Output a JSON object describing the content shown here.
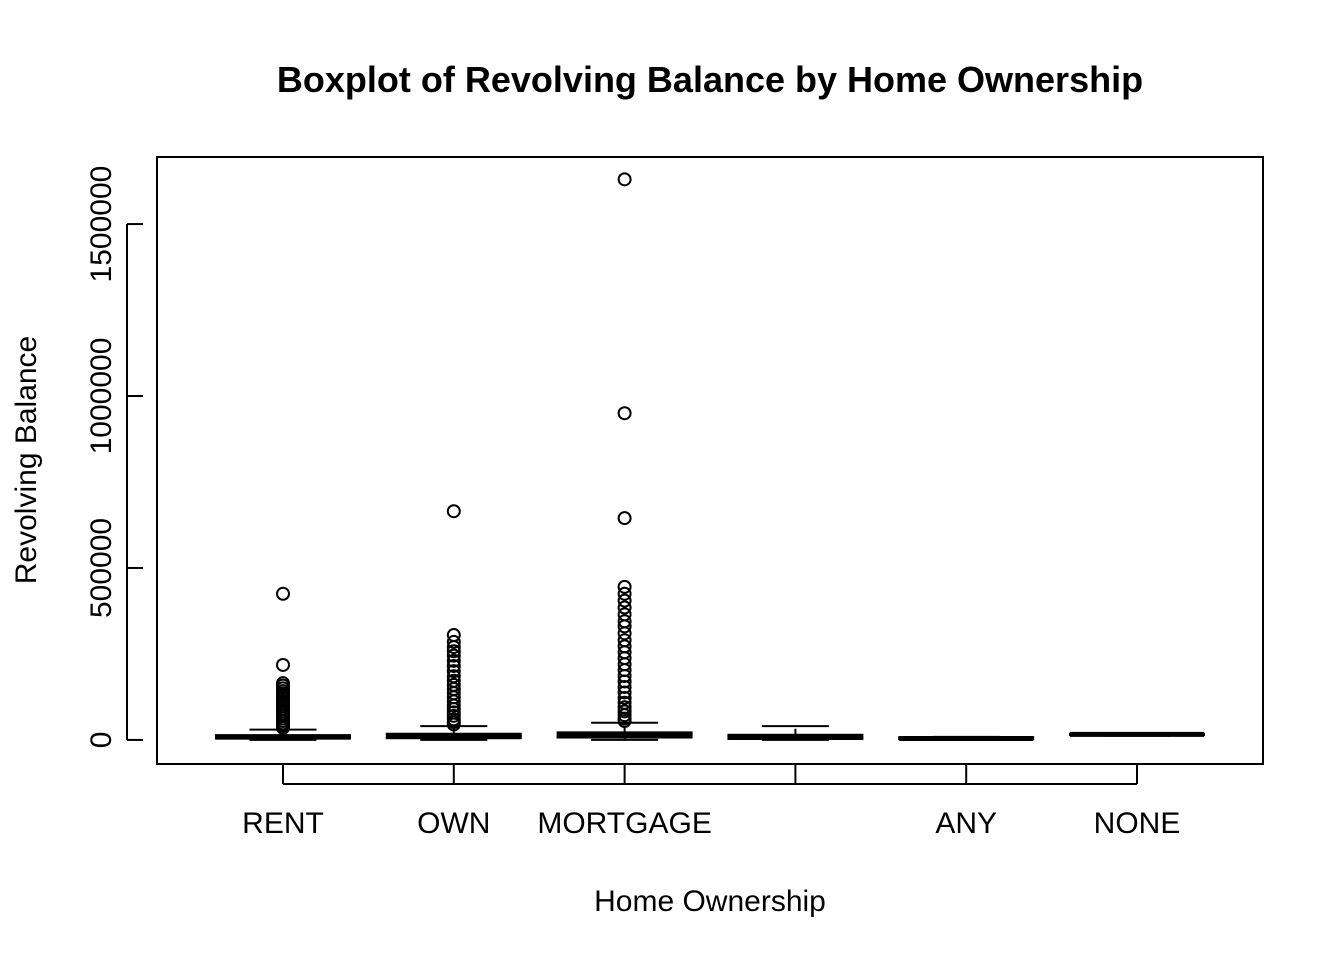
{
  "chart_data": {
    "type": "boxplot",
    "title": "Boxplot of Revolving Balance by Home Ownership",
    "xlabel": "Home Ownership",
    "ylabel": "Revolving Balance",
    "categories": [
      "RENT",
      "OWN",
      "MORTGAGE",
      "",
      "ANY",
      "NONE"
    ],
    "ylim": [
      -70000,
      1695000
    ],
    "yticks": [
      0,
      500000,
      1000000,
      1500000
    ],
    "ytick_labels": [
      "0",
      "500000",
      "1000000",
      "1500000"
    ],
    "grid": false,
    "boxes": [
      {
        "category": "RENT",
        "min": 0,
        "q1": 4000,
        "median": 8000,
        "q3": 14000,
        "max": 30000,
        "outliers": [
          425000,
          218000,
          165000,
          158000,
          150000,
          142000,
          135000,
          128000,
          120000,
          112000,
          105000,
          98000,
          90000,
          83000,
          76000,
          69000,
          62000,
          55000,
          48000,
          41000,
          35000
        ]
      },
      {
        "category": "OWN",
        "min": 0,
        "q1": 5000,
        "median": 10000,
        "q3": 18000,
        "max": 40000,
        "outliers": [
          665000,
          305000,
          285000,
          270000,
          258000,
          245000,
          230000,
          215000,
          200000,
          185000,
          172000,
          160000,
          148000,
          136000,
          124000,
          112000,
          100000,
          90000,
          80000,
          70000,
          60000,
          52000,
          45000
        ]
      },
      {
        "category": "MORTGAGE",
        "min": 0,
        "q1": 7000,
        "median": 13000,
        "q3": 22000,
        "max": 50000,
        "outliers": [
          1630000,
          950000,
          645000,
          445000,
          425000,
          405000,
          385000,
          365000,
          345000,
          330000,
          310000,
          290000,
          272000,
          255000,
          238000,
          220000,
          203000,
          186000,
          170000,
          154000,
          138000,
          122000,
          108000,
          95000,
          83000,
          72000,
          62000,
          55000
        ]
      },
      {
        "category": "",
        "min": 0,
        "q1": 3000,
        "median": 7000,
        "q3": 15000,
        "max": 40000,
        "outliers": []
      },
      {
        "category": "ANY",
        "min": 0,
        "q1": 2000,
        "median": 4000,
        "q3": 8000,
        "max": 9000,
        "outliers": []
      },
      {
        "category": "NONE",
        "min": 12000,
        "q1": 14000,
        "median": 16000,
        "q3": 18000,
        "max": 19000,
        "outliers": []
      }
    ]
  }
}
